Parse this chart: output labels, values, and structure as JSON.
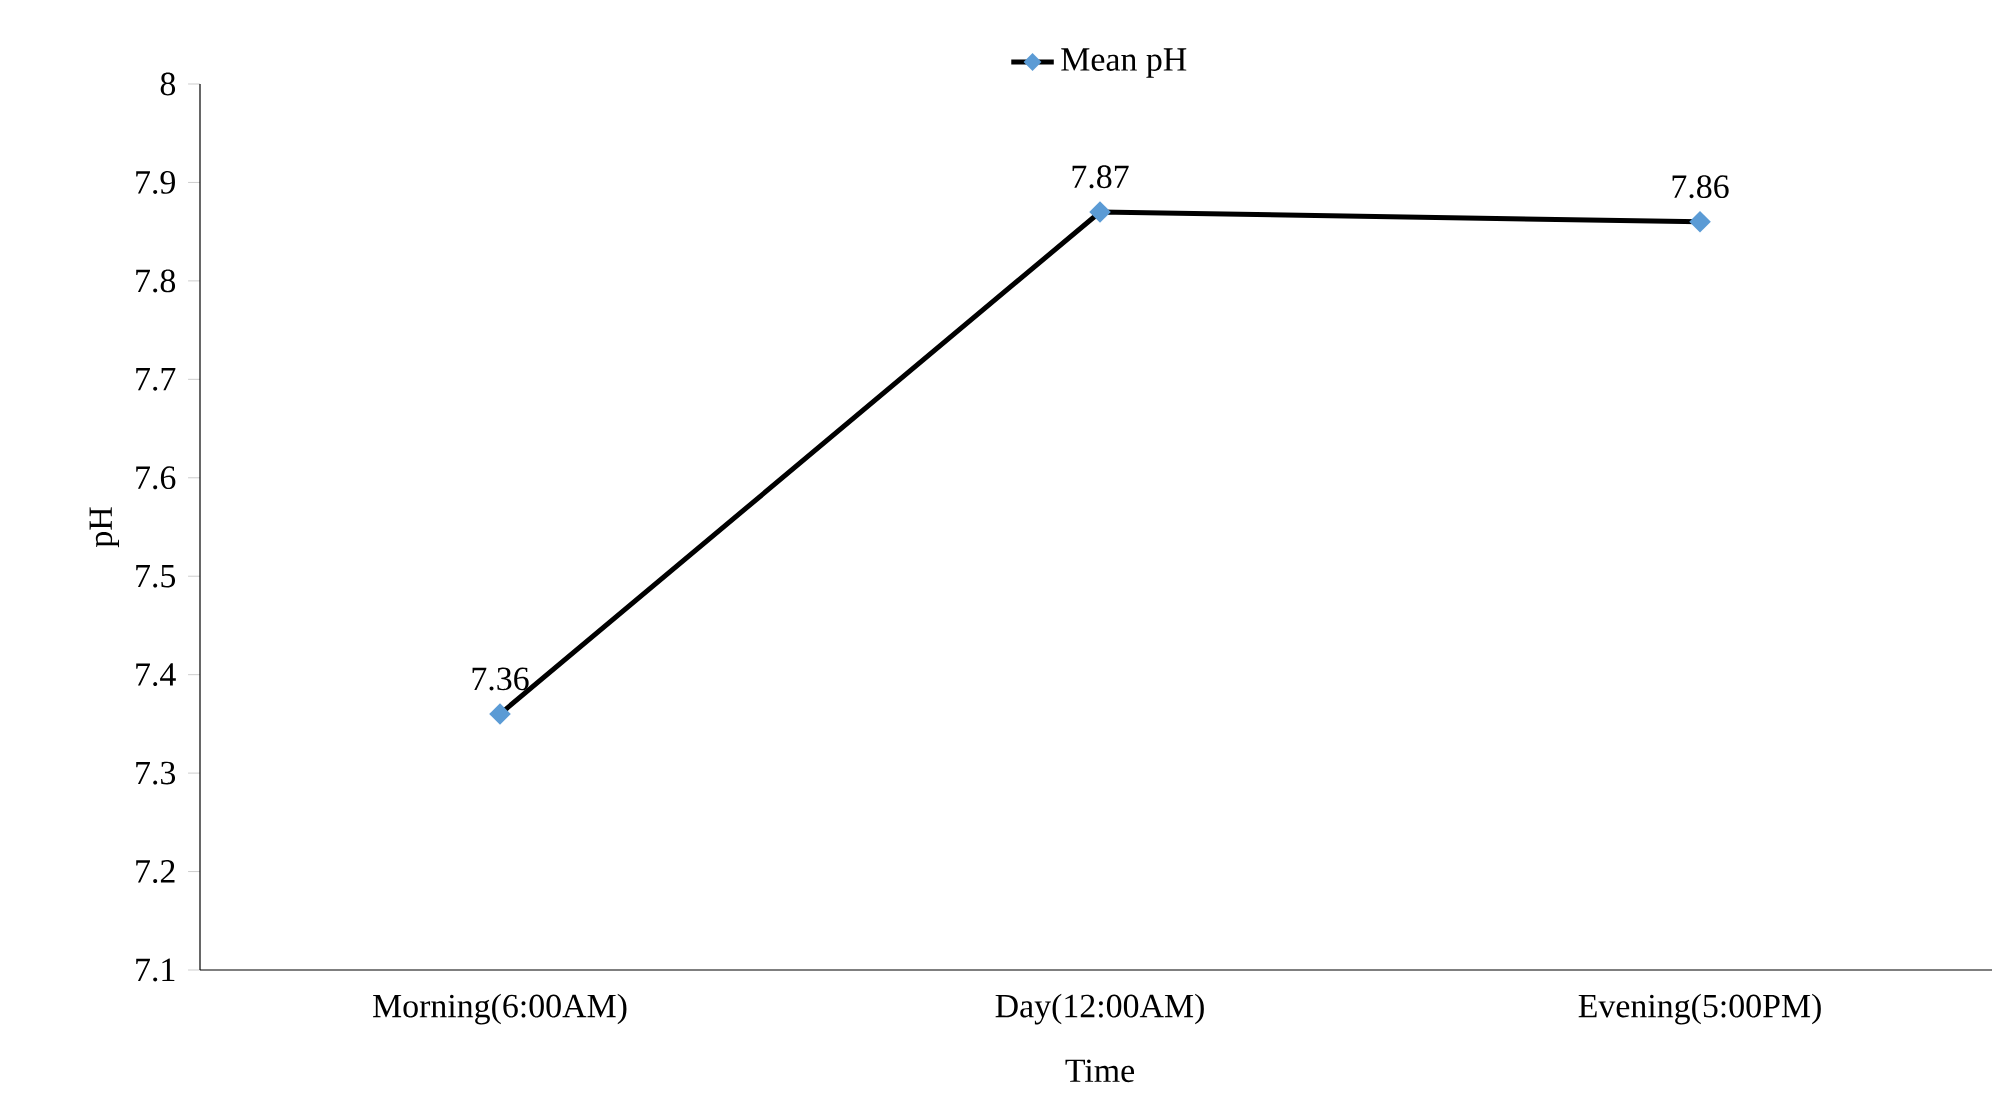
{
  "chart_data": {
    "type": "line",
    "xlabel": "Time",
    "ylabel": "pH",
    "categories": [
      "Morning(6:00AM)",
      "Day(12:00AM)",
      "Evening(5:00PM)"
    ],
    "series": [
      {
        "name": "Mean pH",
        "color": "#000000",
        "colors": [
          "#5b9bd5",
          "#5b9bd5",
          "#5b9bd5"
        ],
        "values": [
          7.36,
          7.87,
          7.86
        ]
      }
    ],
    "ylim": [
      7.1,
      8
    ],
    "yticks": [
      7.1,
      7.2,
      7.3,
      7.4,
      7.5,
      7.6,
      7.7,
      7.8,
      7.9,
      8
    ],
    "data_labels": true,
    "legend": "top",
    "marker": "diamond",
    "line_style": "solid",
    "grid": false
  }
}
